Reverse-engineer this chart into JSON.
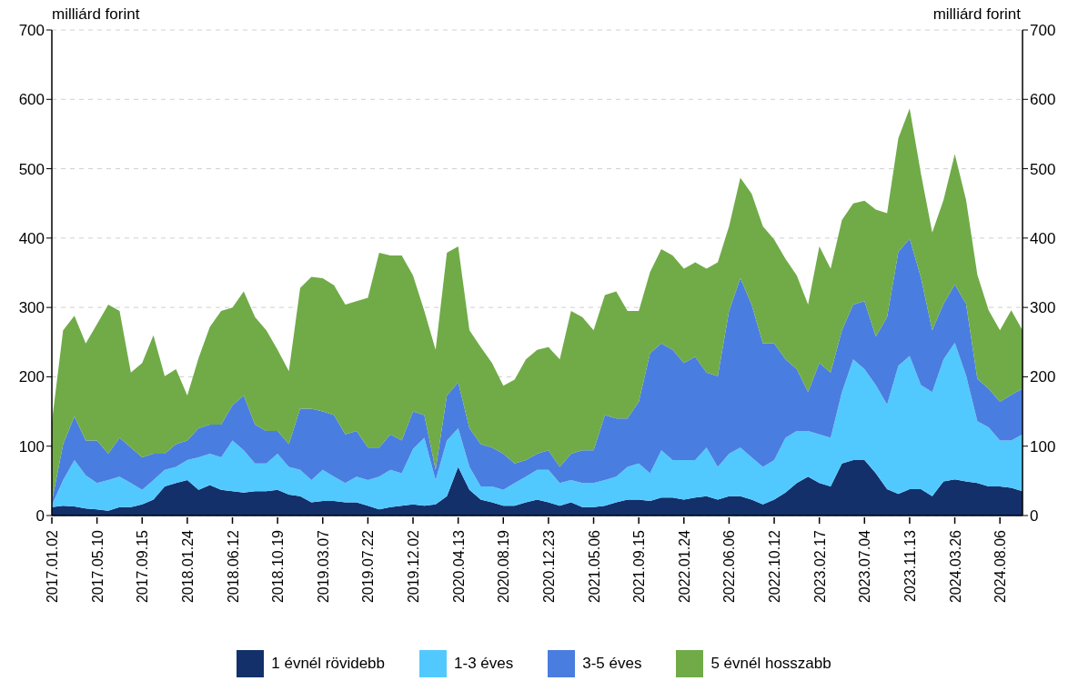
{
  "chart_data": {
    "type": "area",
    "stacked": true,
    "categories": [
      "2017.01.02",
      null,
      null,
      null,
      "2017.05.10",
      null,
      null,
      null,
      "2017.09.15",
      null,
      null,
      null,
      "2018.01.24",
      null,
      null,
      null,
      "2018.06.12",
      null,
      null,
      null,
      "2018.10.19",
      null,
      null,
      null,
      "2019.03.07",
      null,
      null,
      null,
      "2019.07.22",
      null,
      null,
      null,
      "2019.12.02",
      null,
      null,
      null,
      "2020.04.13",
      null,
      null,
      null,
      "2020.08.19",
      null,
      null,
      null,
      "2020.12.23",
      null,
      null,
      null,
      "2021.05.06",
      null,
      null,
      null,
      "2021.09.15",
      null,
      null,
      null,
      "2022.01.24",
      null,
      null,
      null,
      "2022.06.06",
      null,
      null,
      null,
      "2022.10.12",
      null,
      null,
      null,
      "2023.02.17",
      null,
      null,
      null,
      "2023.07.04",
      null,
      null,
      null,
      "2023.11.13",
      null,
      null,
      null,
      "2024.03.26",
      null,
      null,
      null,
      "2024.08.06",
      null,
      null
    ],
    "series": [
      {
        "name": "1 évnél rövidebb",
        "color": "#13306b",
        "values": [
          12,
          14,
          13,
          10,
          9,
          7,
          12,
          12,
          16,
          23,
          42,
          47,
          51,
          37,
          44,
          37,
          35,
          33,
          35,
          35,
          37,
          30,
          28,
          19,
          21,
          21,
          19,
          19,
          14,
          9,
          12,
          14,
          16,
          14,
          16,
          28,
          70,
          37,
          23,
          19,
          14,
          14,
          19,
          23,
          19,
          14,
          19,
          12,
          12,
          14,
          19,
          23,
          23,
          21,
          26,
          26,
          23,
          26,
          28,
          23,
          28,
          28,
          23,
          16,
          23,
          33,
          47,
          56,
          47,
          42,
          75,
          80,
          80,
          61,
          38,
          31,
          38,
          38,
          28,
          49,
          52,
          49,
          47,
          42,
          42,
          40,
          35
        ]
      },
      {
        "name": "1-3 éves",
        "color": "#52c9fe",
        "values": [
          3,
          37,
          67,
          48,
          38,
          44,
          44,
          35,
          21,
          28,
          24,
          23,
          29,
          47,
          45,
          47,
          73,
          61,
          40,
          40,
          52,
          40,
          38,
          32,
          45,
          35,
          28,
          37,
          37,
          47,
          54,
          47,
          80,
          98,
          35,
          80,
          56,
          33,
          19,
          23,
          23,
          33,
          37,
          43,
          47,
          33,
          32,
          35,
          35,
          37,
          37,
          47,
          52,
          40,
          68,
          54,
          57,
          54,
          70,
          47,
          61,
          70,
          61,
          54,
          57,
          79,
          75,
          66,
          70,
          70,
          103,
          145,
          131,
          127,
          122,
          185,
          192,
          150,
          150,
          176,
          197,
          153,
          89,
          85,
          66,
          68,
          82
        ]
      },
      {
        "name": "3-5 éves",
        "color": "#4a7de0",
        "values": [
          5,
          52,
          63,
          50,
          61,
          38,
          56,
          51,
          47,
          38,
          23,
          33,
          28,
          42,
          42,
          47,
          51,
          79,
          56,
          47,
          33,
          33,
          88,
          103,
          84,
          89,
          70,
          66,
          47,
          42,
          51,
          47,
          54,
          33,
          15,
          65,
          66,
          56,
          61,
          56,
          52,
          28,
          24,
          23,
          28,
          23,
          38,
          47,
          47,
          94,
          84,
          70,
          89,
          173,
          154,
          159,
          140,
          149,
          108,
          131,
          206,
          244,
          220,
          178,
          168,
          113,
          89,
          56,
          103,
          94,
          89,
          79,
          98,
          70,
          126,
          164,
          169,
          155,
          89,
          80,
          84,
          103,
          61,
          56,
          56,
          66,
          66
        ]
      },
      {
        "name": "5 évnél hosszabb",
        "color": "#70ab48",
        "values": [
          115,
          164,
          145,
          140,
          168,
          215,
          183,
          108,
          136,
          171,
          112,
          108,
          65,
          101,
          141,
          164,
          141,
          150,
          155,
          145,
          117,
          105,
          174,
          190,
          192,
          187,
          187,
          187,
          216,
          281,
          258,
          267,
          196,
          150,
          173,
          206,
          196,
          141,
          140,
          122,
          98,
          121,
          145,
          150,
          149,
          155,
          206,
          192,
          173,
          173,
          183,
          155,
          131,
          117,
          136,
          136,
          136,
          136,
          150,
          164,
          122,
          145,
          160,
          169,
          150,
          145,
          135,
          126,
          168,
          150,
          159,
          146,
          145,
          183,
          150,
          164,
          188,
          150,
          141,
          150,
          188,
          150,
          150,
          113,
          103,
          122,
          84
        ]
      }
    ],
    "ylabel": "milliárd forint",
    "y2label": "milliárd forint",
    "ylim": [
      0,
      700
    ],
    "yticks": [
      0,
      100,
      200,
      300,
      400,
      500,
      600,
      700
    ],
    "y2lim": [
      0,
      700
    ],
    "y2ticks": [
      0,
      100,
      200,
      300,
      400,
      500,
      600,
      700
    ],
    "grid": "y",
    "legend": "bottom"
  }
}
